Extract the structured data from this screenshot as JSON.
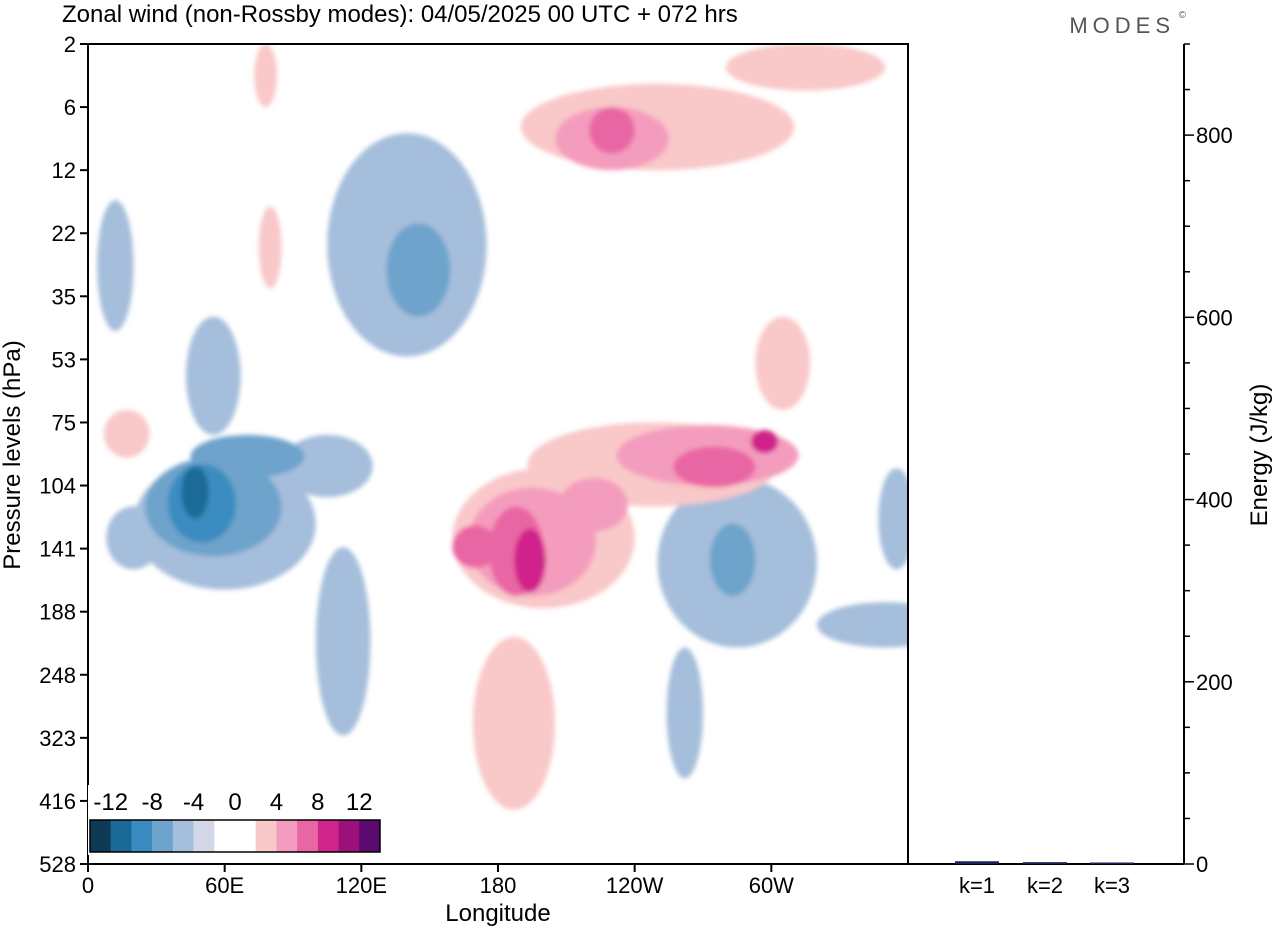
{
  "title": "Zonal wind (non-Rossby modes):  04/05/2025  00 UTC  + 072 hrs",
  "brand": "MODES",
  "brand_mark": "©",
  "chart_data": [
    {
      "type": "heatmap",
      "xlabel": "Longitude",
      "ylabel": "Pressure levels (hPa)",
      "x_ticks": [
        "0",
        "60E",
        "120E",
        "180",
        "120W",
        "60W"
      ],
      "x_tick_degrees": [
        0,
        60,
        120,
        180,
        240,
        300
      ],
      "xlim": [
        0,
        360
      ],
      "y_ticks": [
        "2",
        "6",
        "12",
        "22",
        "35",
        "53",
        "75",
        "104",
        "141",
        "188",
        "248",
        "323",
        "416",
        "528"
      ],
      "y_scale": "pressure levels, top to bottom",
      "colorbar": {
        "labels": [
          "-12",
          "-8",
          "-4",
          "0",
          "4",
          "8",
          "12"
        ],
        "colors": [
          "#0d3a55",
          "#1a6a97",
          "#3a8cc0",
          "#6ea3cc",
          "#a5bedb",
          "#d3d7e8",
          "#ffffff",
          "#ffffff",
          "#f9c8c8",
          "#f49cbd",
          "#e966a4",
          "#d0248a",
          "#9c1179",
          "#5a0a6e"
        ]
      },
      "regions": [
        {
          "level": -1,
          "lon": 12,
          "p": 30,
          "rlon": 8,
          "rp": 14
        },
        {
          "level": -1,
          "lon": 55,
          "p": 60,
          "rlon": 12,
          "rp": 20
        },
        {
          "level": -1,
          "lon": 140,
          "p": 30,
          "rlon": 35,
          "rp": 22
        },
        {
          "level": -2,
          "lon": 145,
          "p": 30,
          "rlon": 14,
          "rp": 10
        },
        {
          "level": -1,
          "lon": 20,
          "p": 135,
          "rlon": 12,
          "rp": 20
        },
        {
          "level": -1,
          "lon": 60,
          "p": 130,
          "rlon": 40,
          "rp": 40
        },
        {
          "level": -2,
          "lon": 55,
          "p": 118,
          "rlon": 30,
          "rp": 28
        },
        {
          "level": -3,
          "lon": 50,
          "p": 115,
          "rlon": 15,
          "rp": 22
        },
        {
          "level": -4,
          "lon": 47,
          "p": 108,
          "rlon": 6,
          "rp": 14
        },
        {
          "level": -2,
          "lon": 70,
          "p": 90,
          "rlon": 25,
          "rp": 10
        },
        {
          "level": -1,
          "lon": 105,
          "p": 95,
          "rlon": 20,
          "rp": 15
        },
        {
          "level": -1,
          "lon": 112,
          "p": 230,
          "rlon": 12,
          "rp": 90
        },
        {
          "level": -1,
          "lon": 285,
          "p": 160,
          "rlon": 35,
          "rp": 60
        },
        {
          "level": -2,
          "lon": 283,
          "p": 150,
          "rlon": 10,
          "rp": 25
        },
        {
          "level": -1,
          "lon": 355,
          "p": 125,
          "rlon": 8,
          "rp": 30
        },
        {
          "level": -1,
          "lon": 350,
          "p": 200,
          "rlon": 30,
          "rp": 20
        },
        {
          "level": -1,
          "lon": 262,
          "p": 300,
          "rlon": 8,
          "rp": 80
        },
        {
          "level": 1,
          "lon": 200,
          "p": 140,
          "rlon": 40,
          "rp": 45
        },
        {
          "level": 1,
          "lon": 248,
          "p": 95,
          "rlon": 55,
          "rp": 20
        },
        {
          "level": 1,
          "lon": 305,
          "p": 55,
          "rlon": 12,
          "rp": 15
        },
        {
          "level": 1,
          "lon": 250,
          "p": 8,
          "rlon": 60,
          "rp": 4
        },
        {
          "level": 1,
          "lon": 315,
          "p": 3,
          "rlon": 35,
          "rp": 1.5
        },
        {
          "level": 1,
          "lon": 187,
          "p": 320,
          "rlon": 18,
          "rp": 110
        },
        {
          "level": 1,
          "lon": 17,
          "p": 80,
          "rlon": 10,
          "rp": 10
        },
        {
          "level": 1,
          "lon": 80,
          "p": 25,
          "rlon": 5,
          "rp": 8
        },
        {
          "level": 1,
          "lon": 78,
          "p": 4,
          "rlon": 5,
          "rp": 2
        },
        {
          "level": 2,
          "lon": 195,
          "p": 140,
          "rlon": 28,
          "rp": 35
        },
        {
          "level": 2,
          "lon": 272,
          "p": 90,
          "rlon": 40,
          "rp": 14
        },
        {
          "level": 2,
          "lon": 230,
          "p": 9,
          "rlon": 25,
          "rp": 3
        },
        {
          "level": 2,
          "lon": 222,
          "p": 115,
          "rlon": 15,
          "rp": 15
        },
        {
          "level": 3,
          "lon": 188,
          "p": 145,
          "rlon": 12,
          "rp": 30
        },
        {
          "level": 3,
          "lon": 170,
          "p": 140,
          "rlon": 10,
          "rp": 14
        },
        {
          "level": 3,
          "lon": 275,
          "p": 95,
          "rlon": 18,
          "rp": 10
        },
        {
          "level": 3,
          "lon": 230,
          "p": 8,
          "rlon": 10,
          "rp": 2
        },
        {
          "level": 4,
          "lon": 194,
          "p": 150,
          "rlon": 7,
          "rp": 22
        },
        {
          "level": 4,
          "lon": 297,
          "p": 83,
          "rlon": 6,
          "rp": 5
        }
      ]
    },
    {
      "type": "bar",
      "categories": [
        "k=1",
        "k=2",
        "k=3"
      ],
      "values": [
        3,
        2,
        1
      ],
      "ylabel": "Energy (J/kg)",
      "ylim": [
        0,
        900
      ],
      "y_ticks": [
        0,
        200,
        400,
        600,
        800
      ],
      "bar_color": "#1a2050"
    }
  ]
}
